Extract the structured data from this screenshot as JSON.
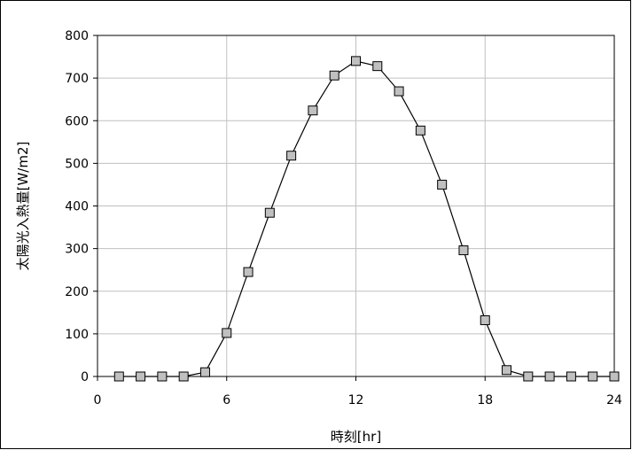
{
  "chart_data": {
    "type": "line",
    "xlabel": "時刻[hr]",
    "ylabel": "太陽光入熱量[W/m2]",
    "xlim": [
      0,
      24
    ],
    "ylim": [
      0,
      800
    ],
    "xticks": [
      0,
      6,
      12,
      18,
      24
    ],
    "yticks": [
      0,
      100,
      200,
      300,
      400,
      500,
      600,
      700,
      800
    ],
    "grid": true,
    "marker": "square",
    "colors": {
      "line": "#000000",
      "marker_fill": "#c0c0c0",
      "marker_edge": "#000000",
      "grid": "#c0c0c0"
    },
    "series": [
      {
        "x": [
          1,
          2,
          3,
          4,
          5,
          6,
          7,
          8,
          9,
          10,
          11,
          12,
          13,
          14,
          15,
          16,
          17,
          18,
          19,
          20,
          21,
          22,
          23,
          24
        ],
        "values": [
          0,
          0,
          0,
          0,
          10,
          102,
          245,
          384,
          518,
          624,
          706,
          740,
          728,
          669,
          577,
          450,
          296,
          132,
          15,
          0,
          0,
          0,
          0,
          0
        ]
      }
    ]
  }
}
